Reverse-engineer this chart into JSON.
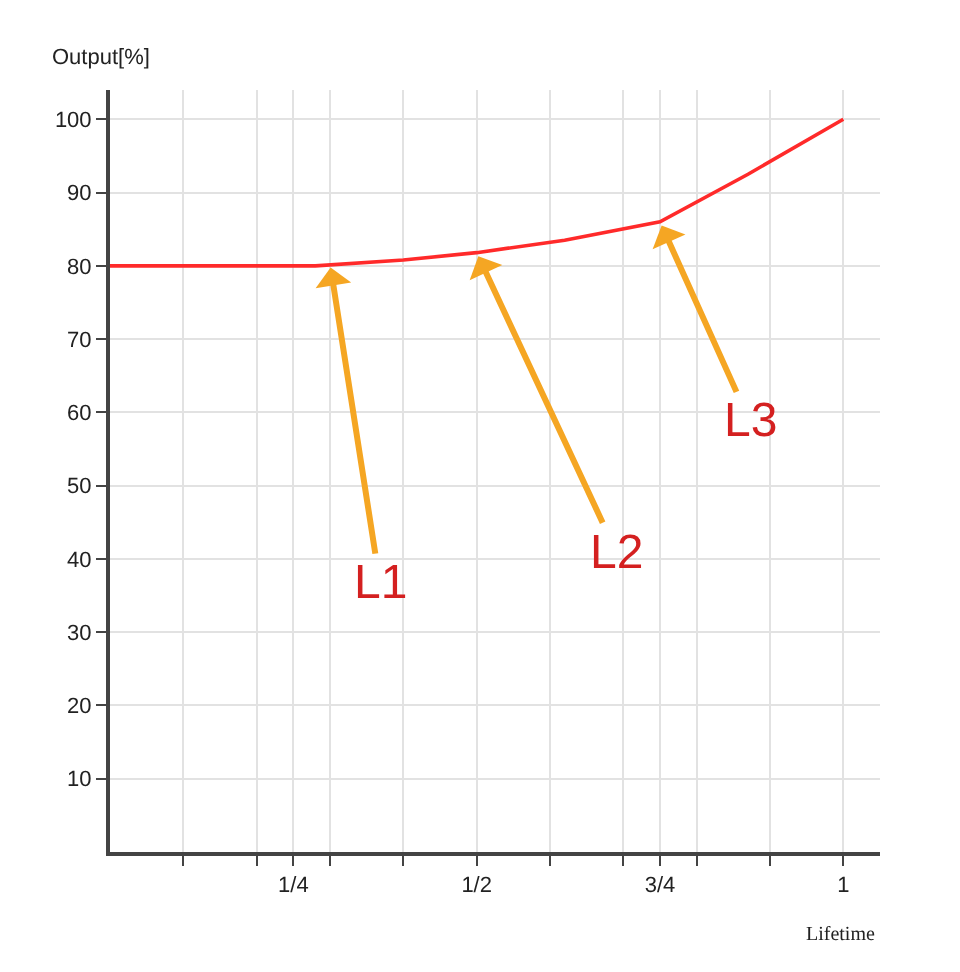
{
  "chart_data": {
    "type": "line",
    "xlabel": "Lifetime",
    "ylabel": "Output[%]",
    "x": [
      0,
      0.28,
      0.4,
      0.5,
      0.62,
      0.75,
      0.87,
      1
    ],
    "series": [
      {
        "color": "#ff2a2a",
        "values": [
          80,
          80,
          80.8,
          81.8,
          83.5,
          86,
          92.5,
          100
        ]
      }
    ],
    "xlim": [
      0,
      1.05
    ],
    "ylim": [
      0,
      104
    ],
    "xticks": [
      {
        "value": 0.1,
        "label": null
      },
      {
        "value": 0.2,
        "label": null
      },
      {
        "value": 0.25,
        "label": "1/4"
      },
      {
        "value": 0.3,
        "label": null
      },
      {
        "value": 0.4,
        "label": null
      },
      {
        "value": 0.5,
        "label": "1/2"
      },
      {
        "value": 0.6,
        "label": null
      },
      {
        "value": 0.7,
        "label": null
      },
      {
        "value": 0.75,
        "label": "3/4"
      },
      {
        "value": 0.8,
        "label": null
      },
      {
        "value": 0.9,
        "label": null
      },
      {
        "value": 1,
        "label": "1"
      }
    ],
    "yticks": [
      10,
      20,
      30,
      40,
      50,
      60,
      70,
      80,
      90,
      100
    ],
    "grid": true,
    "marker": "none",
    "line_style": "solid",
    "annotations": [
      {
        "text": "L1",
        "x": 0.3,
        "y": 80.3
      },
      {
        "text": "L2",
        "x": 0.5,
        "y": 81.8
      },
      {
        "text": "L3",
        "x": 0.75,
        "y": 86
      }
    ]
  }
}
